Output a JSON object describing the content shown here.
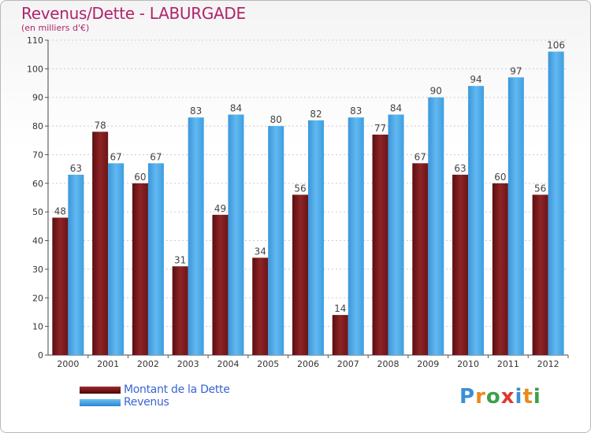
{
  "chart_data": {
    "type": "bar",
    "title": "Revenus/Dette - LABURGADE",
    "subtitle": "(en milliers d'€)",
    "categories": [
      "2000",
      "2001",
      "2002",
      "2003",
      "2004",
      "2005",
      "2006",
      "2007",
      "2008",
      "2009",
      "2010",
      "2011",
      "2012"
    ],
    "series": [
      {
        "name": "Montant de la Dette",
        "color": "#7a1a1c",
        "values": [
          48,
          78,
          60,
          31,
          49,
          34,
          56,
          14,
          77,
          67,
          63,
          60,
          56
        ]
      },
      {
        "name": "Revenus",
        "color": "#3d9ee0",
        "values": [
          63,
          67,
          67,
          83,
          84,
          80,
          82,
          83,
          84,
          90,
          94,
          97,
          106
        ]
      }
    ],
    "ylim": [
      0,
      110
    ],
    "yticks": [
      0,
      10,
      20,
      30,
      40,
      50,
      60,
      70,
      80,
      90,
      100,
      110
    ],
    "grid": true,
    "legend": "bottom-left"
  },
  "branding": {
    "logo_text": "Proxiti"
  }
}
